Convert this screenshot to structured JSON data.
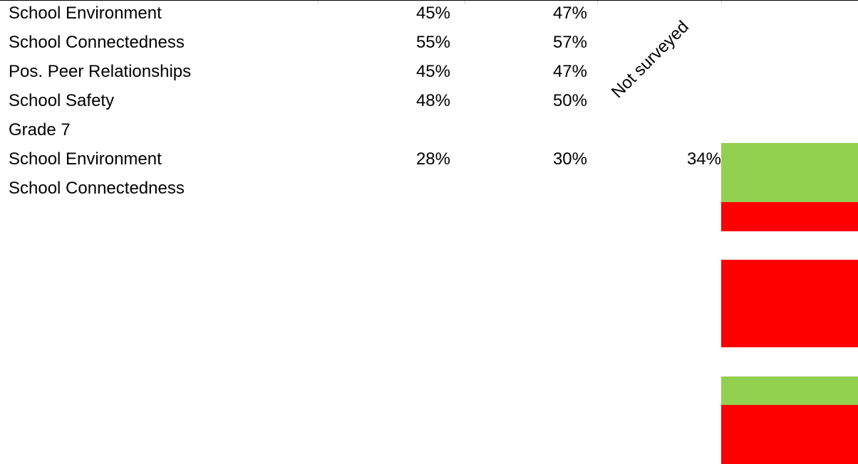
{
  "rows": [
    {
      "label": "School Environment",
      "v1": "45%",
      "v2": "47%",
      "v3": ""
    },
    {
      "label": "School Connectedness",
      "v1": "55%",
      "v2": "57%",
      "v3": ""
    },
    {
      "label": "Pos. Peer Relationships",
      "v1": "45%",
      "v2": "47%",
      "v3": ""
    },
    {
      "label": "School Safety",
      "v1": "48%",
      "v2": "50%",
      "v3": ""
    },
    {
      "label": "Grade 7",
      "v1": "",
      "v2": "",
      "v3": ""
    },
    {
      "label": "School Environment",
      "v1": "28%",
      "v2": "30%",
      "v3": "34%"
    },
    {
      "label": "School Connectedness",
      "v1": "",
      "v2": "",
      "v3": ""
    }
  ],
  "note": "Not surveyed",
  "colors": {
    "green": "#92d050",
    "red": "#ff0000"
  },
  "color_blocks": [
    {
      "color": "green"
    },
    {
      "color": "red"
    },
    {
      "color": "red"
    },
    {
      "color": "green"
    },
    {
      "color": "red"
    }
  ]
}
